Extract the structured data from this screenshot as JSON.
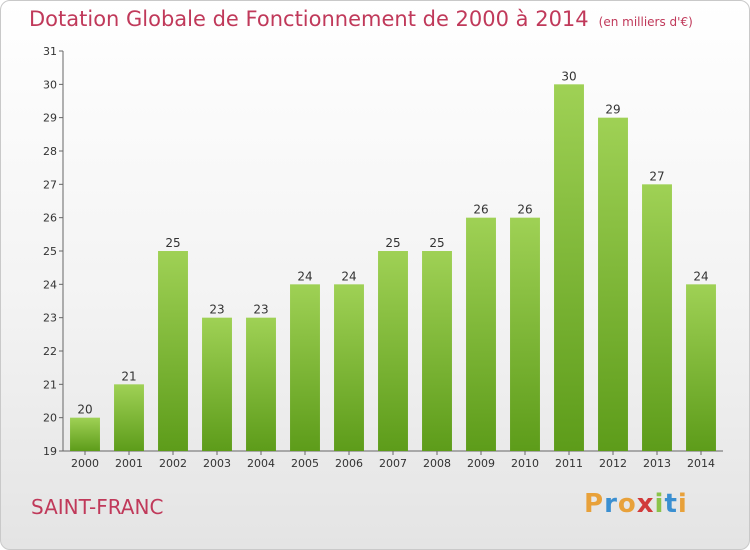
{
  "header": {
    "title": "Dotation Globale de Fonctionnement de 2000 à 2014",
    "unit": "(en milliers d'€)"
  },
  "footer": {
    "town": "SAINT-FRANC",
    "logo": "Proxiti"
  },
  "colors": {
    "title": "#c0395a",
    "bar_top": "#9fd155",
    "bar_bottom": "#5d9c1a"
  },
  "chart_data": {
    "type": "bar",
    "title": "Dotation Globale de Fonctionnement de 2000 à 2014",
    "categories": [
      "2000",
      "2001",
      "2002",
      "2003",
      "2004",
      "2005",
      "2006",
      "2007",
      "2008",
      "2009",
      "2010",
      "2011",
      "2012",
      "2013",
      "2014"
    ],
    "values": [
      20,
      21,
      25,
      23,
      23,
      24,
      24,
      25,
      25,
      26,
      26,
      30,
      29,
      27,
      24
    ],
    "ylim": [
      19,
      31
    ],
    "yticks": [
      19,
      20,
      21,
      22,
      23,
      24,
      25,
      26,
      27,
      28,
      29,
      30,
      31
    ],
    "grid": false,
    "data_labels": true
  }
}
